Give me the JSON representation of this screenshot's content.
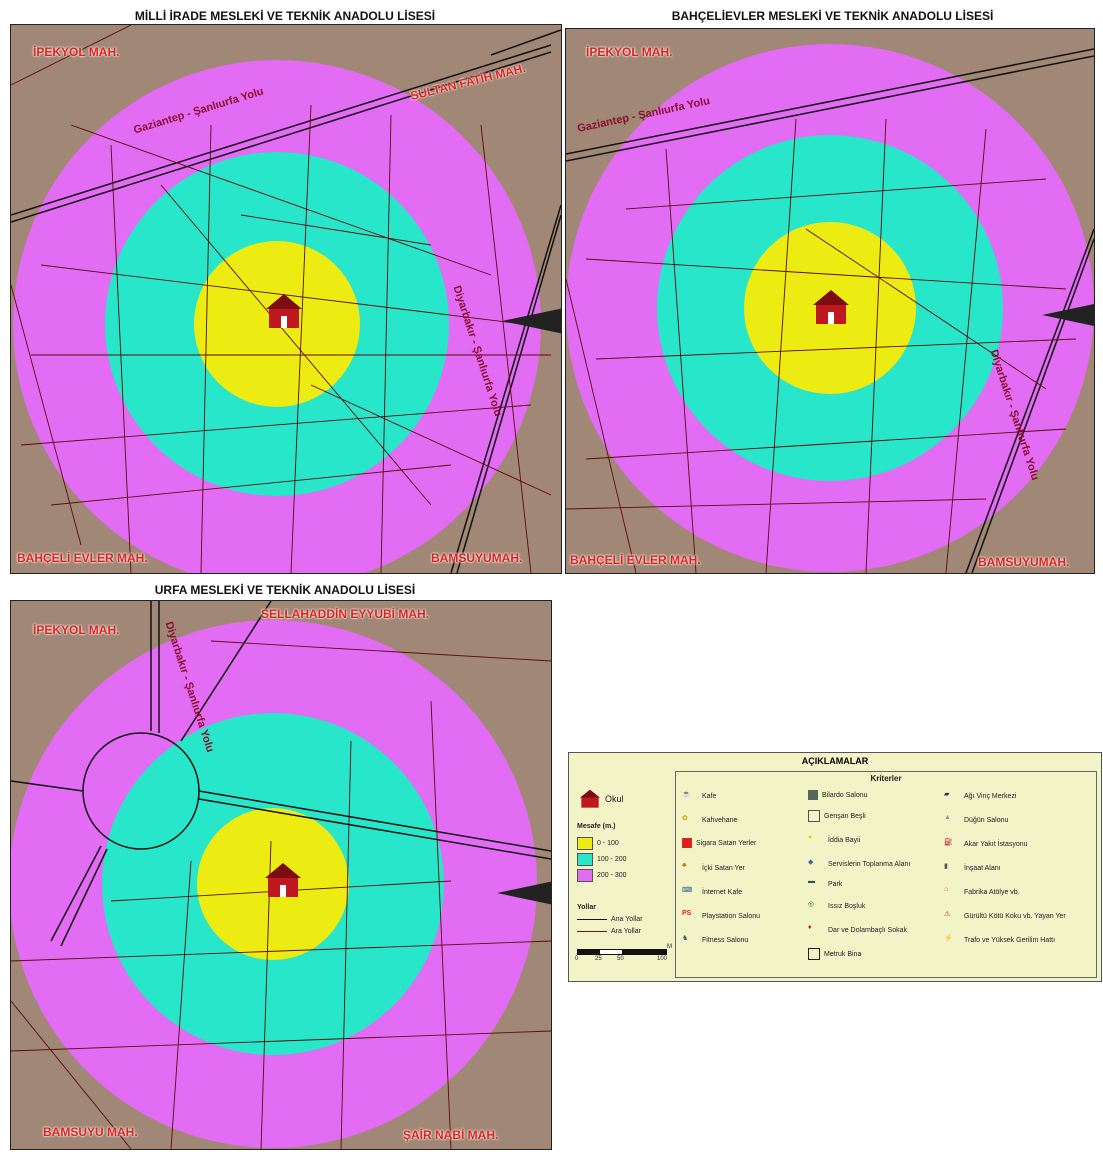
{
  "colors": {
    "yellow": "#ecec13",
    "cyan": "#27e6c9",
    "magenta": "#e36cf4",
    "land": "#a08776",
    "road": "#111111",
    "minorRoad": "#7a1010",
    "mah": "#e0201a",
    "roadText": "#8a0f2e",
    "legendBg": "#f2f4c8"
  },
  "panels": [
    {
      "title": "MİLLİ İRADE MESLEKİ VE TEKNİK ANADOLU LİSESİ",
      "mahalles": [
        "İPEKYOL MAH.",
        "SULTAN FATİH MAH.",
        "BAHÇELİ EVLER MAH.",
        "BAMSUYUMAH."
      ],
      "roads": [
        "Gaziantep - Şanlıurfa Yolu",
        "Diyarbakır - Şanlıurfa Yolu"
      ]
    },
    {
      "title": "BAHÇELİEVLER MESLEKİ VE TEKNİK ANADOLU LİSESİ",
      "mahalles": [
        "İPEKYOL MAH.",
        "BAHÇELİ EVLER MAH.",
        "BAMSUYUMAH."
      ],
      "roads": [
        "Gaziantep - Şanlıurfa Yolu",
        "Diyarbakır - Şanlıurfa Yolu"
      ]
    },
    {
      "title": "URFA  MESLEKİ VE TEKNİK ANADOLU LİSESİ",
      "mahalles": [
        "İPEKYOL MAH.",
        "SELLAHADDİN EYYUBİ MAH.",
        "BAMSUYU MAH.",
        "ŞAİR NABİ MAH."
      ],
      "roads": [
        "Diyarbakır - Şanlıurfa Yolu"
      ]
    }
  ],
  "legend": {
    "title": "AÇIKLAMALAR",
    "school": "Okul",
    "distanceTitle": "Mesafe (m.)",
    "distances": [
      "0 - 100",
      "100 - 200",
      "200 - 300"
    ],
    "roadsTitle": "Yollar",
    "roads": [
      "Ana Yollar",
      "Ara Yollar"
    ],
    "scaleLabels": [
      "0",
      "25",
      "50",
      "100"
    ],
    "scaleUnit": "M",
    "criteriaTitle": "Kriterler",
    "col1": [
      "Kafe",
      "Kahvehane",
      "Sigara Satan Yerler",
      "İçki Satan Yer",
      "İnternet Kafe",
      "Playstation Salonu",
      "Fitness Salonu"
    ],
    "col2": [
      "Bilardo Salonu",
      "Genşan Beşli",
      "İddia Bayii",
      "Servislerin Toplanma Alanı",
      "Park",
      "Issız Boşluk",
      "Dar ve Dolambaçlı Sokak",
      "Metruk Bina"
    ],
    "col3": [
      "Ağı Vinç Merkezi",
      "Düğün Salonu",
      "Akar Yakıt İstasyonu",
      "İnşaat Alanı",
      "Fabrika Atölye vb.",
      "Gürültü Kötü Koku vb. Yayan Yer",
      "Trafo ve Yüksek Gerilim Hattı"
    ]
  }
}
